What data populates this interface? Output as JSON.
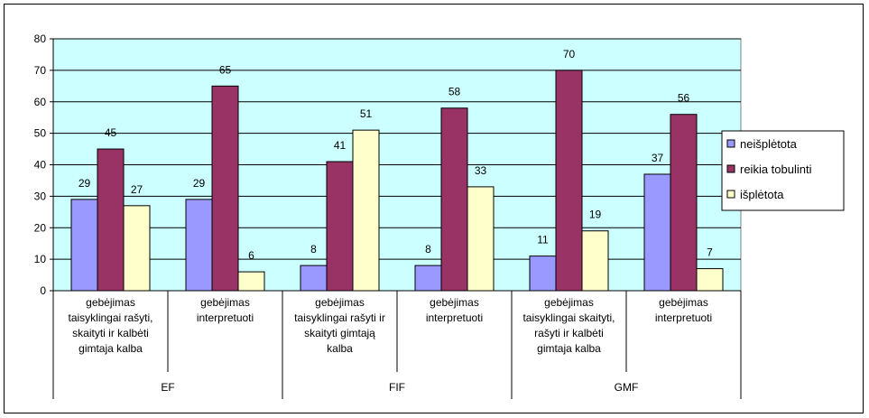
{
  "chart_data": {
    "type": "bar",
    "title": "",
    "xlabel": "",
    "ylabel": "",
    "ylim": [
      0,
      80
    ],
    "yticks": [
      0,
      10,
      20,
      30,
      40,
      50,
      60,
      70,
      80
    ],
    "grid": true,
    "legend_position": "right",
    "groups": [
      {
        "name": "EF",
        "categories": [
          [
            "gebėjimas",
            "taisyklingai rašyti,",
            "skaityti ir kalbėti",
            "gimtaja kalba"
          ],
          [
            "gebėjimas",
            "interpretuoti"
          ]
        ]
      },
      {
        "name": "FIF",
        "categories": [
          [
            "gebėjimas",
            "taisyklingai rašyti ir",
            "skaityti gimtają",
            "kalba"
          ],
          [
            "gebėjimas",
            "interpretuoti"
          ]
        ]
      },
      {
        "name": "GMF",
        "categories": [
          [
            "gebėjimas",
            "taisyklingai skaityti,",
            "rašyti ir kalbėti",
            "gimtaja kalba"
          ],
          [
            "gebėjimas",
            "interpretuoti"
          ]
        ]
      }
    ],
    "series": [
      {
        "name": "neišplėtota",
        "color": "#9999ff",
        "values": [
          29,
          29,
          8,
          8,
          11,
          37
        ]
      },
      {
        "name": "reikia tobulinti",
        "color": "#993366",
        "values": [
          45,
          65,
          41,
          58,
          70,
          56
        ]
      },
      {
        "name": "išplėtota",
        "color": "#ffffcc",
        "values": [
          27,
          6,
          51,
          33,
          19,
          7
        ]
      }
    ],
    "plot_background": "#ccffff"
  }
}
